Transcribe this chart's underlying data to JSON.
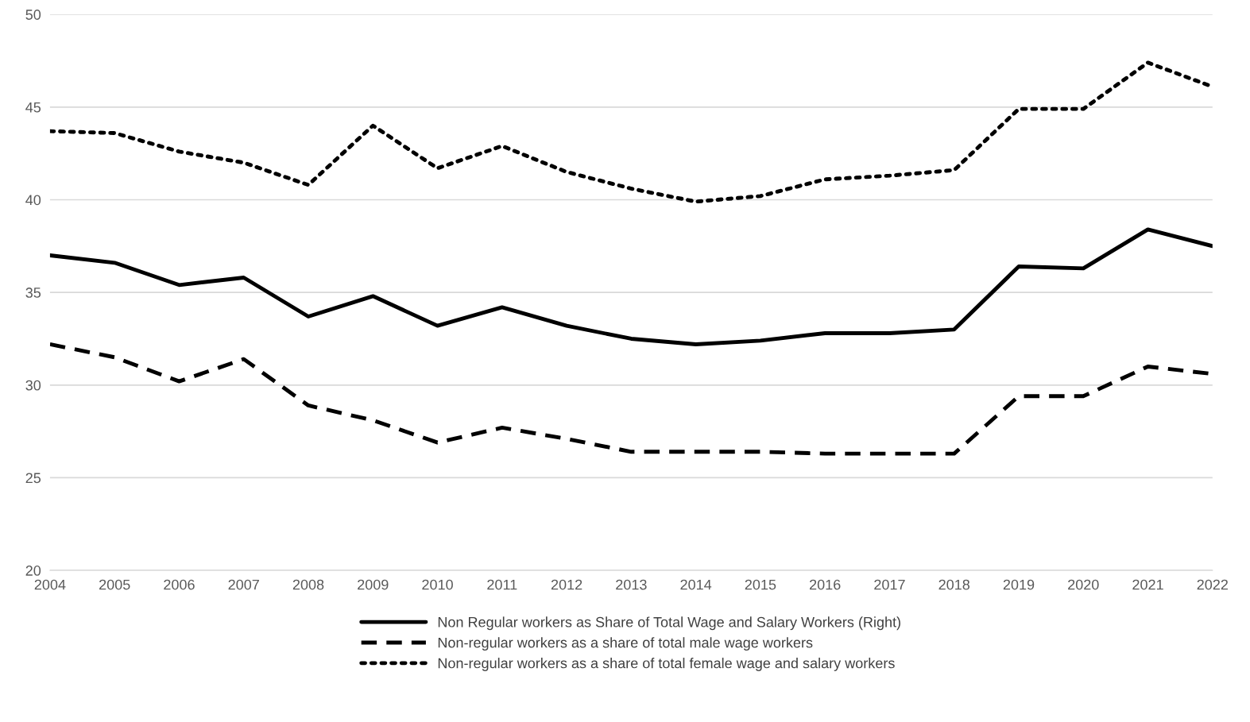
{
  "chart_data": {
    "type": "line",
    "x": [
      2004,
      2005,
      2006,
      2007,
      2008,
      2009,
      2010,
      2011,
      2012,
      2013,
      2014,
      2015,
      2016,
      2017,
      2018,
      2019,
      2020,
      2021,
      2022
    ],
    "xlim": [
      2004,
      2022
    ],
    "xticks": [
      2004,
      2005,
      2006,
      2007,
      2008,
      2009,
      2010,
      2011,
      2012,
      2013,
      2014,
      2015,
      2016,
      2017,
      2018,
      2019,
      2020,
      2021,
      2022
    ],
    "ylim": [
      20,
      50
    ],
    "yticks": [
      20,
      25,
      30,
      35,
      40,
      45,
      50
    ],
    "grid": "y",
    "legend": "bottom",
    "marker": "none",
    "series": [
      {
        "name": "Non Regular workers as Share of Total Wage and Salary Workers (Right)",
        "color": "#000000",
        "line_style": "solid",
        "values": [
          37.0,
          36.6,
          35.4,
          35.8,
          33.7,
          34.8,
          33.2,
          34.2,
          33.2,
          32.5,
          32.2,
          32.4,
          32.8,
          32.8,
          33.0,
          36.4,
          36.3,
          38.4,
          37.5
        ]
      },
      {
        "name": "Non-regular workers as a share of total male wage workers",
        "color": "#000000",
        "line_style": "dashed",
        "values": [
          32.2,
          31.5,
          30.2,
          31.4,
          28.9,
          28.1,
          26.9,
          27.7,
          27.1,
          26.4,
          26.4,
          26.4,
          26.3,
          26.3,
          26.3,
          29.4,
          29.4,
          31.0,
          30.6
        ]
      },
      {
        "name": "Non-regular workers as a share of total female wage and salary workers",
        "color": "#000000",
        "line_style": "dotted",
        "values": [
          43.7,
          43.6,
          42.6,
          42.0,
          40.8,
          44.0,
          41.7,
          42.9,
          41.5,
          40.6,
          39.9,
          40.2,
          41.1,
          41.3,
          41.6,
          44.9,
          44.9,
          47.4,
          46.1
        ]
      }
    ]
  }
}
